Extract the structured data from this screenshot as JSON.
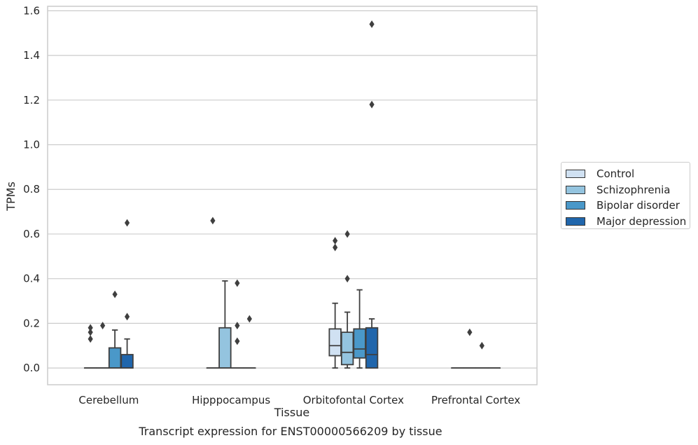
{
  "caption": "Transcript expression for ENST00000566209 by tissue",
  "chart_data": {
    "type": "box",
    "xlabel": "Tissue",
    "ylabel": "TPMs",
    "ylim": [
      -0.075,
      1.62
    ],
    "yticks": [
      "0.0",
      "0.2",
      "0.4",
      "0.6",
      "0.8",
      "1.0",
      "1.2",
      "1.4",
      "1.6"
    ],
    "grid": "horizontal",
    "legend_placement": "right",
    "categories": [
      "Cerebellum",
      "Hipppocampus",
      "Orbitofontal Cortex",
      "Prefrontal Cortex"
    ],
    "series": [
      {
        "name": "Control",
        "color": "#d0e1f2",
        "boxes": [
          {
            "q1": 0,
            "median": 0,
            "q3": 0,
            "whislo": 0,
            "whishi": 0,
            "fliers": [
              0.13,
              0.16,
              0.18
            ]
          },
          {
            "q1": 0,
            "median": 0,
            "q3": 0,
            "whislo": 0,
            "whishi": 0,
            "fliers": [
              0.66
            ]
          },
          {
            "q1": 0.055,
            "median": 0.1,
            "q3": 0.175,
            "whislo": 0,
            "whishi": 0.29,
            "fliers": [
              0.54,
              0.57
            ]
          },
          {
            "q1": 0,
            "median": 0,
            "q3": 0,
            "whislo": 0,
            "whishi": 0,
            "fliers": []
          }
        ]
      },
      {
        "name": "Schizophrenia",
        "color": "#94c4df",
        "boxes": [
          {
            "q1": 0,
            "median": 0,
            "q3": 0,
            "whislo": 0,
            "whishi": 0,
            "fliers": [
              0.19
            ]
          },
          {
            "q1": 0,
            "median": 0,
            "q3": 0.18,
            "whislo": 0,
            "whishi": 0.39,
            "fliers": []
          },
          {
            "q1": 0.015,
            "median": 0.07,
            "q3": 0.16,
            "whislo": 0,
            "whishi": 0.25,
            "fliers": [
              0.4,
              0.6
            ]
          },
          {
            "q1": 0,
            "median": 0,
            "q3": 0,
            "whislo": 0,
            "whishi": 0,
            "fliers": [
              0.16
            ]
          }
        ]
      },
      {
        "name": "Bipolar disorder",
        "color": "#4a98c9",
        "boxes": [
          {
            "q1": 0,
            "median": 0,
            "q3": 0.09,
            "whislo": 0,
            "whishi": 0.17,
            "fliers": [
              0.33
            ]
          },
          {
            "q1": 0,
            "median": 0,
            "q3": 0,
            "whislo": 0,
            "whishi": 0,
            "fliers": [
              0.12,
              0.19,
              0.38
            ]
          },
          {
            "q1": 0.045,
            "median": 0.085,
            "q3": 0.175,
            "whislo": 0,
            "whishi": 0.35,
            "fliers": []
          },
          {
            "q1": 0,
            "median": 0,
            "q3": 0,
            "whislo": 0,
            "whishi": 0,
            "fliers": [
              0.1
            ]
          }
        ]
      },
      {
        "name": "Major depression",
        "color": "#2066ac",
        "boxes": [
          {
            "q1": 0,
            "median": 0,
            "q3": 0.06,
            "whislo": 0,
            "whishi": 0.13,
            "fliers": [
              0.23,
              0.65
            ]
          },
          {
            "q1": 0,
            "median": 0,
            "q3": 0,
            "whislo": 0,
            "whishi": 0,
            "fliers": [
              0.22
            ]
          },
          {
            "q1": 0,
            "median": 0.06,
            "q3": 0.18,
            "whislo": 0,
            "whishi": 0.22,
            "fliers": [
              1.18,
              1.54
            ]
          },
          {
            "q1": 0,
            "median": 0,
            "q3": 0,
            "whislo": 0,
            "whishi": 0,
            "fliers": []
          }
        ]
      }
    ]
  }
}
